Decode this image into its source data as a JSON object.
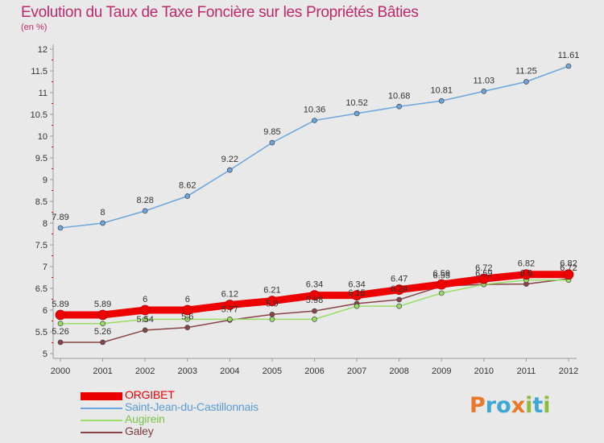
{
  "header": {
    "title": "Evolution du Taux de Taxe Foncière sur les Propriétés Bâties",
    "unit": "(en %)"
  },
  "logo": {
    "text": "Proxiti",
    "letters": [
      {
        "ch": "P",
        "color": "#e9782b"
      },
      {
        "ch": "r",
        "color": "#3fa7d6"
      },
      {
        "ch": "o",
        "color": "#3fa7d6"
      },
      {
        "ch": "x",
        "color": "#e9782b"
      },
      {
        "ch": "i",
        "color": "#8cbc3c"
      },
      {
        "ch": "t",
        "color": "#3fa7d6"
      },
      {
        "ch": "i",
        "color": "#8cbc3c"
      }
    ]
  },
  "chart_data": {
    "type": "line",
    "title": "Evolution du Taux de Taxe Foncière sur les Propriétés Bâties",
    "ylabel": "(en %)",
    "x": [
      2000,
      2001,
      2002,
      2003,
      2004,
      2005,
      2006,
      2007,
      2008,
      2009,
      2010,
      2011,
      2012
    ],
    "ylim": [
      5,
      12
    ],
    "yticks": [
      5,
      5.5,
      6,
      6.5,
      7,
      7.5,
      8,
      8.5,
      9,
      9.5,
      10,
      10.5,
      11,
      11.5,
      12
    ],
    "ytick_labels": [
      "5",
      "5.5",
      "6",
      "6.5",
      "7",
      "7.5",
      "8",
      "8.5",
      "9",
      "9.5",
      "10",
      "10.5",
      "11",
      "11.5",
      "12"
    ],
    "grid": false,
    "legend_position": "bottom-left",
    "series": [
      {
        "name": "ORGIBET",
        "color": "#ee0000",
        "values": [
          5.89,
          5.89,
          6,
          6,
          6.12,
          6.21,
          6.34,
          6.34,
          6.47,
          6.59,
          6.72,
          6.82,
          6.82
        ],
        "labels": [
          "5.89",
          "5.89",
          "6",
          "6",
          "6.12",
          "6.21",
          "6.34",
          "6.34",
          "6.47",
          "6.59",
          "6.72",
          "6.82",
          "6.82"
        ],
        "thick": true
      },
      {
        "name": "Saint-Jean-du-Castillonnais",
        "color": "#6aa6dd",
        "values": [
          7.89,
          8,
          8.28,
          8.62,
          9.22,
          9.85,
          10.36,
          10.52,
          10.68,
          10.81,
          11.03,
          11.25,
          11.61
        ],
        "labels": [
          "7.89",
          "8",
          "8.28",
          "8.62",
          "9.22",
          "9.85",
          "10.36",
          "10.52",
          "10.68",
          "10.81",
          "11.03",
          "11.25",
          "11.61"
        ]
      },
      {
        "name": "Augirein",
        "color": "#99dd66",
        "values": [
          5.69,
          5.69,
          5.79,
          5.79,
          5.79,
          5.79,
          5.79,
          6.09,
          6.09,
          6.39,
          6.59,
          6.69,
          6.69
        ]
      },
      {
        "name": "Galey",
        "color": "#884444",
        "values": [
          5.26,
          5.26,
          5.54,
          5.6,
          5.77,
          5.9,
          5.98,
          6.15,
          6.24,
          6.55,
          6.59,
          6.6,
          6.72
        ],
        "labels": [
          "5.26",
          "5.26",
          "5.54",
          "5.6",
          "5.77",
          "5.9",
          "5.98",
          "6.15",
          "6.24",
          "6.55",
          "6.59",
          "6.6",
          "6.72"
        ]
      }
    ]
  }
}
